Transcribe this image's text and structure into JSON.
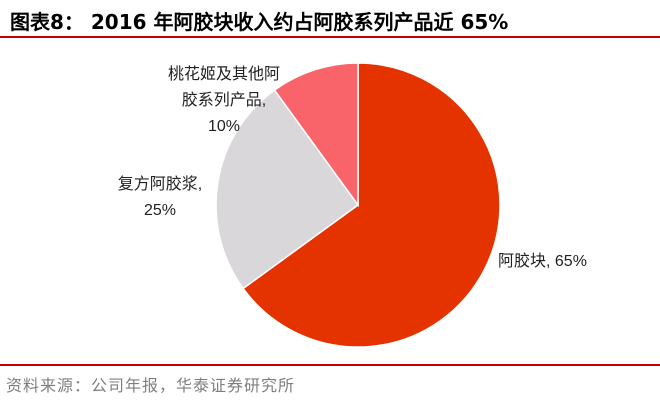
{
  "header": {
    "title": "图表8：  2016 年阿胶块收入约占阿胶系列产品近 65%"
  },
  "footer": {
    "source": "资料来源：公司年报，华泰证券研究所"
  },
  "chart_data": {
    "type": "pie",
    "title": "",
    "start_angle_deg": 0,
    "direction": "clockwise",
    "slices": [
      {
        "label_lines": [
          "阿胶块, 65%"
        ],
        "value": 65,
        "color": "#e53300"
      },
      {
        "label_lines": [
          "复方阿胶浆,",
          "25%"
        ],
        "value": 25,
        "color": "#d9d7d9"
      },
      {
        "label_lines": [
          "桃花姬及其他阿",
          "胶系列产品,",
          "10%"
        ],
        "value": 10,
        "color": "#f86469"
      }
    ]
  }
}
